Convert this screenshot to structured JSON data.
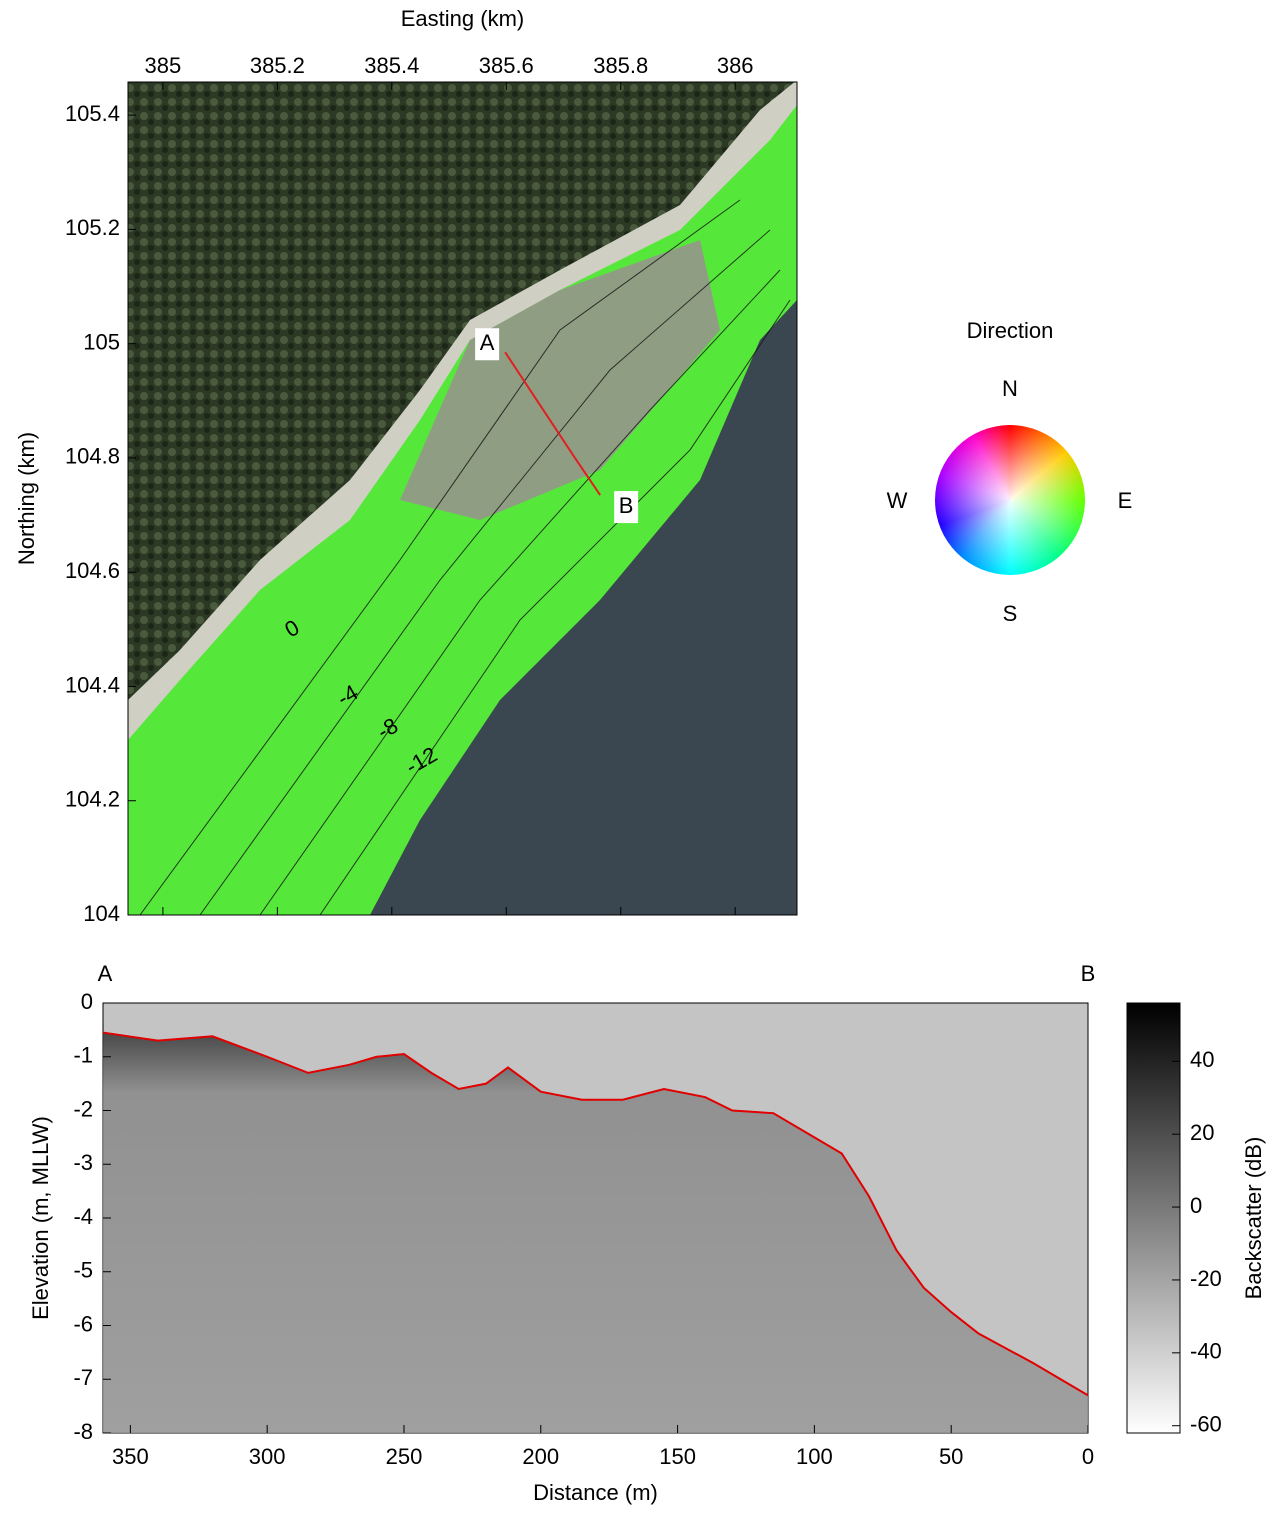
{
  "chart_data": [
    {
      "type": "map",
      "xlabel": "Easting (km)",
      "ylabel": "Northing (km)",
      "xlim": [
        384.939,
        386.108
      ],
      "ylim": [
        104,
        105.458
      ],
      "xticks": [
        385,
        385.2,
        385.4,
        385.6,
        385.8,
        386
      ],
      "yticks": [
        104,
        104.2,
        104.4,
        104.6,
        104.8,
        105,
        105.2,
        105.4
      ],
      "contours": [
        {
          "value": 0,
          "x": 385.227,
          "y": 104.499
        },
        {
          "value": -4,
          "x": 385.324,
          "y": 104.382
        },
        {
          "value": -8,
          "x": 385.394,
          "y": 104.324
        },
        {
          "value": -12,
          "x": 385.453,
          "y": 104.268
        }
      ],
      "transect": {
        "labels": [
          "A",
          "B"
        ],
        "x": [
          385.598,
          385.72,
          385.764
        ],
        "y": [
          104.985,
          104.8,
          104.735
        ],
        "color": "#e02020"
      },
      "direction_legend": {
        "title": "Direction",
        "labels": [
          "N",
          "E",
          "S",
          "W"
        ]
      }
    },
    {
      "type": "profile",
      "xlabel": "Distance (m)",
      "ylabel": "Elevation (m, MLLW)",
      "end_labels": [
        "A",
        "B"
      ],
      "xlim": [
        360,
        0
      ],
      "ylim": [
        -8,
        0
      ],
      "xticks": [
        350,
        300,
        250,
        200,
        150,
        100,
        50,
        0
      ],
      "yticks": [
        0,
        -1,
        -2,
        -3,
        -4,
        -5,
        -6,
        -7,
        -8
      ],
      "seabed": {
        "color": "#e00000",
        "x": [
          360,
          340,
          320,
          300,
          285,
          270,
          260,
          250,
          240,
          230,
          220,
          212,
          200,
          185,
          170,
          155,
          140,
          130,
          115,
          100,
          90,
          80,
          70,
          60,
          50,
          40,
          20,
          0
        ],
        "y": [
          -0.55,
          -0.7,
          -0.62,
          -1.0,
          -1.3,
          -1.15,
          -1.0,
          -0.95,
          -1.3,
          -1.6,
          -1.5,
          -1.2,
          -1.65,
          -1.8,
          -1.8,
          -1.6,
          -1.75,
          -2.0,
          -2.05,
          -2.5,
          -2.8,
          -3.6,
          -4.6,
          -5.3,
          -5.75,
          -6.15,
          -6.7,
          -7.3
        ]
      },
      "colorbar": {
        "label": "Backscatter (dB)",
        "lim": [
          -62,
          56
        ],
        "ticks": [
          -60,
          -40,
          -20,
          0,
          20,
          40
        ]
      }
    }
  ]
}
